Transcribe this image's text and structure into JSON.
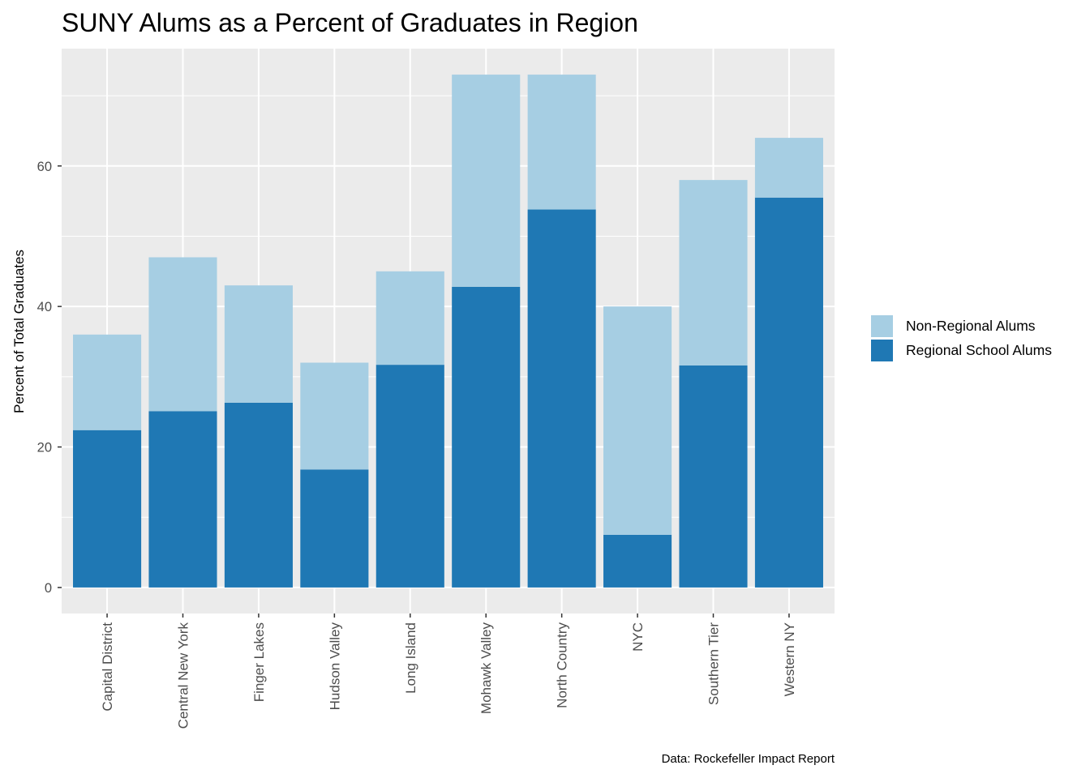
{
  "chart_data": {
    "type": "bar",
    "stacked": true,
    "title": "SUNY Alums as a Percent of Graduates in Region",
    "xlabel": "",
    "ylabel": "Percent of Total Graduates",
    "caption": "Data: Rockefeller Impact Report",
    "categories": [
      "Capital District",
      "Central New York",
      "Finger Lakes",
      "Hudson Valley",
      "Long Island",
      "Mohawk Valley",
      "North Country",
      "NYC",
      "Southern Tier",
      "Western NY"
    ],
    "series": [
      {
        "name": "Regional School Alums",
        "color": "#1f78b4",
        "values": [
          22.4,
          25.1,
          26.3,
          16.8,
          31.7,
          42.8,
          53.8,
          7.5,
          31.6,
          55.5
        ]
      },
      {
        "name": "Non-Regional Alums",
        "color": "#a6cee3",
        "values": [
          13.6,
          21.9,
          16.7,
          15.2,
          13.3,
          30.2,
          19.2,
          32.5,
          26.4,
          8.5
        ]
      }
    ],
    "legend_order": [
      "Non-Regional Alums",
      "Regional School Alums"
    ],
    "y_ticks": [
      0,
      20,
      40,
      60
    ],
    "ylim": [
      -3.7,
      76.7
    ],
    "grid": true,
    "legend_position": "right",
    "panel_background": "#ebebeb",
    "grid_color": "#ffffff"
  }
}
